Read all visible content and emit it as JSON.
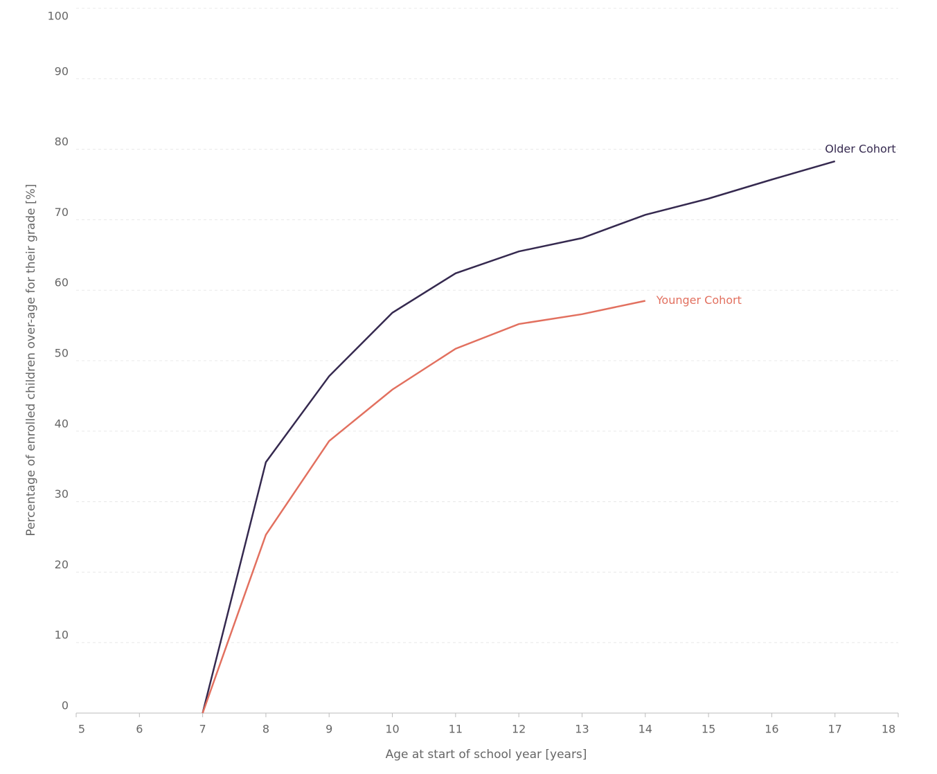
{
  "chart_data": {
    "type": "line",
    "x": [
      7,
      8,
      9,
      10,
      11,
      12,
      13,
      14,
      15,
      16,
      17
    ],
    "series": [
      {
        "name": "Older Cohort",
        "color": "#35294f",
        "values": [
          0,
          35.6,
          47.8,
          56.8,
          62.4,
          65.5,
          67.4,
          70.7,
          73.0,
          75.7,
          78.3
        ]
      },
      {
        "name": "Younger Cohort",
        "color": "#e2705f",
        "values": [
          0,
          25.3,
          38.6,
          45.9,
          51.7,
          55.2,
          56.6,
          58.5,
          null,
          null,
          null
        ]
      }
    ],
    "xlabel": "Age at start of school year [years]",
    "ylabel": "Percentage of enrolled children over-age for their grade [%]",
    "xlim": [
      5,
      18
    ],
    "xticks": [
      5,
      6,
      7,
      8,
      9,
      10,
      11,
      12,
      13,
      14,
      15,
      16,
      17,
      18
    ],
    "ylim": [
      0,
      100
    ],
    "yticks": [
      0,
      10,
      20,
      30,
      40,
      50,
      60,
      70,
      80,
      90,
      100
    ],
    "grid": true
  }
}
